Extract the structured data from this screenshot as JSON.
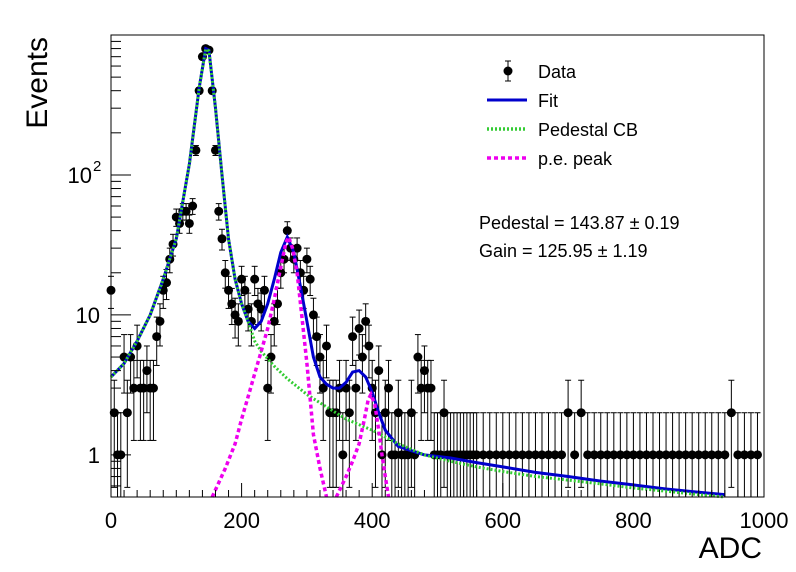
{
  "chart_data": {
    "type": "scatter",
    "xlabel": "ADC",
    "ylabel": "Events",
    "xlim": [
      0,
      1000
    ],
    "ylim": [
      0.5,
      1000
    ],
    "yscale": "log",
    "x_ticks": [
      "0",
      "200",
      "400",
      "600",
      "800",
      "1000"
    ],
    "y_ticks": [
      {
        "value": 1,
        "label": "1"
      },
      {
        "value": 10,
        "label": "10"
      },
      {
        "value": 100,
        "label": "10",
        "exp": "2"
      }
    ],
    "legend": {
      "placement": "top-right",
      "entries": [
        {
          "label": "Data",
          "style": "marker",
          "color": "#000000"
        },
        {
          "label": "Fit",
          "style": "solid",
          "color": "#0000cc"
        },
        {
          "label": "Pedestal CB",
          "style": "dotted",
          "color": "#33cc33"
        },
        {
          "label": "p.e. peak",
          "style": "dashed",
          "color": "#ee00ee"
        }
      ]
    },
    "annotations": [
      {
        "text": "Pedestal = 143.87 ± 0.19"
      },
      {
        "text": "Gain = 125.95 ± 1.19"
      }
    ],
    "series": [
      {
        "name": "Data",
        "color": "#000000",
        "points": [
          [
            0,
            15
          ],
          [
            5,
            2
          ],
          [
            10,
            1
          ],
          [
            15,
            1
          ],
          [
            20,
            5
          ],
          [
            25,
            2
          ],
          [
            30,
            5
          ],
          [
            35,
            3
          ],
          [
            40,
            6
          ],
          [
            45,
            3
          ],
          [
            50,
            3
          ],
          [
            55,
            4
          ],
          [
            60,
            3
          ],
          [
            65,
            3
          ],
          [
            70,
            7
          ],
          [
            75,
            9
          ],
          [
            80,
            15
          ],
          [
            85,
            17
          ],
          [
            90,
            25
          ],
          [
            95,
            32
          ],
          [
            100,
            50
          ],
          [
            105,
            45
          ],
          [
            110,
            55
          ],
          [
            115,
            55
          ],
          [
            120,
            45
          ],
          [
            125,
            60
          ],
          [
            130,
            150
          ],
          [
            135,
            400
          ],
          [
            140,
            700
          ],
          [
            145,
            800
          ],
          [
            150,
            780
          ],
          [
            155,
            400
          ],
          [
            160,
            150
          ],
          [
            165,
            55
          ],
          [
            170,
            35
          ],
          [
            175,
            20
          ],
          [
            180,
            15
          ],
          [
            185,
            12
          ],
          [
            190,
            10
          ],
          [
            195,
            9
          ],
          [
            200,
            18
          ],
          [
            205,
            15
          ],
          [
            210,
            11
          ],
          [
            215,
            9
          ],
          [
            220,
            18
          ],
          [
            225,
            12
          ],
          [
            230,
            11
          ],
          [
            235,
            15
          ],
          [
            240,
            3
          ],
          [
            245,
            5
          ],
          [
            250,
            9
          ],
          [
            255,
            12
          ],
          [
            260,
            20
          ],
          [
            265,
            25
          ],
          [
            270,
            40
          ],
          [
            275,
            30
          ],
          [
            280,
            25
          ],
          [
            285,
            30
          ],
          [
            290,
            20
          ],
          [
            295,
            15
          ],
          [
            300,
            25
          ],
          [
            305,
            18
          ],
          [
            310,
            10
          ],
          [
            315,
            7
          ],
          [
            320,
            5
          ],
          [
            325,
            3
          ],
          [
            330,
            6
          ],
          [
            335,
            2
          ],
          [
            340,
            2
          ],
          [
            345,
            2
          ],
          [
            350,
            3
          ],
          [
            355,
            1
          ],
          [
            360,
            3
          ],
          [
            365,
            2
          ],
          [
            370,
            7
          ],
          [
            375,
            3
          ],
          [
            380,
            8
          ],
          [
            385,
            5
          ],
          [
            390,
            9
          ],
          [
            395,
            6
          ],
          [
            400,
            3
          ],
          [
            405,
            2
          ],
          [
            410,
            4
          ],
          [
            415,
            1
          ],
          [
            420,
            2
          ],
          [
            425,
            3
          ],
          [
            430,
            1
          ],
          [
            435,
            1
          ],
          [
            440,
            2
          ],
          [
            445,
            1
          ],
          [
            450,
            1
          ],
          [
            455,
            1
          ],
          [
            460,
            2
          ],
          [
            465,
            1
          ],
          [
            470,
            5
          ],
          [
            475,
            3
          ],
          [
            480,
            4
          ],
          [
            485,
            3
          ],
          [
            490,
            3
          ],
          [
            495,
            1
          ],
          [
            500,
            1
          ],
          [
            505,
            1
          ],
          [
            510,
            2
          ],
          [
            515,
            1
          ],
          [
            520,
            1
          ],
          [
            525,
            1
          ],
          [
            530,
            1
          ],
          [
            535,
            1
          ],
          [
            540,
            1
          ],
          [
            545,
            1
          ],
          [
            550,
            1
          ],
          [
            555,
            1
          ],
          [
            560,
            1
          ],
          [
            570,
            1
          ],
          [
            580,
            1
          ],
          [
            590,
            1
          ],
          [
            600,
            1
          ],
          [
            610,
            1
          ],
          [
            620,
            1
          ],
          [
            630,
            1
          ],
          [
            640,
            1
          ],
          [
            650,
            1
          ],
          [
            660,
            1
          ],
          [
            670,
            1
          ],
          [
            680,
            1
          ],
          [
            690,
            1
          ],
          [
            700,
            2
          ],
          [
            710,
            1
          ],
          [
            720,
            2
          ],
          [
            730,
            1
          ],
          [
            740,
            1
          ],
          [
            750,
            1
          ],
          [
            760,
            1
          ],
          [
            770,
            1
          ],
          [
            780,
            1
          ],
          [
            790,
            1
          ],
          [
            800,
            1
          ],
          [
            810,
            1
          ],
          [
            820,
            1
          ],
          [
            830,
            1
          ],
          [
            840,
            1
          ],
          [
            850,
            1
          ],
          [
            860,
            1
          ],
          [
            870,
            1
          ],
          [
            880,
            1
          ],
          [
            890,
            1
          ],
          [
            900,
            1
          ],
          [
            910,
            1
          ],
          [
            920,
            1
          ],
          [
            930,
            1
          ],
          [
            940,
            1
          ],
          [
            950,
            2
          ],
          [
            960,
            1
          ],
          [
            970,
            1
          ],
          [
            980,
            1
          ],
          [
            990,
            1
          ]
        ]
      },
      {
        "name": "Fit",
        "color": "#0000cc",
        "points": [
          [
            0,
            3.6
          ],
          [
            20,
            4.5
          ],
          [
            40,
            6.5
          ],
          [
            60,
            10
          ],
          [
            80,
            18
          ],
          [
            100,
            35
          ],
          [
            120,
            120
          ],
          [
            135,
            420
          ],
          [
            145,
            800
          ],
          [
            150,
            780
          ],
          [
            160,
            300
          ],
          [
            170,
            100
          ],
          [
            180,
            35
          ],
          [
            190,
            18
          ],
          [
            200,
            12
          ],
          [
            210,
            9
          ],
          [
            220,
            8
          ],
          [
            230,
            9
          ],
          [
            240,
            12
          ],
          [
            250,
            18
          ],
          [
            260,
            28
          ],
          [
            270,
            36
          ],
          [
            280,
            28
          ],
          [
            290,
            16
          ],
          [
            300,
            9
          ],
          [
            310,
            5
          ],
          [
            320,
            3.6
          ],
          [
            330,
            3.2
          ],
          [
            340,
            3.0
          ],
          [
            350,
            3.0
          ],
          [
            360,
            3.3
          ],
          [
            370,
            3.9
          ],
          [
            380,
            4.0
          ],
          [
            390,
            3.6
          ],
          [
            400,
            2.8
          ],
          [
            410,
            2.0
          ],
          [
            420,
            1.5
          ],
          [
            440,
            1.15
          ],
          [
            480,
            1.0
          ],
          [
            520,
            0.95
          ],
          [
            560,
            0.88
          ],
          [
            600,
            0.82
          ],
          [
            650,
            0.75
          ],
          [
            700,
            0.7
          ],
          [
            750,
            0.65
          ],
          [
            800,
            0.61
          ],
          [
            850,
            0.57
          ],
          [
            900,
            0.54
          ],
          [
            940,
            0.52
          ]
        ]
      },
      {
        "name": "Pedestal CB",
        "color": "#33cc33",
        "points": [
          [
            0,
            3.6
          ],
          [
            20,
            4.5
          ],
          [
            40,
            6.5
          ],
          [
            60,
            10
          ],
          [
            80,
            18
          ],
          [
            100,
            35
          ],
          [
            120,
            120
          ],
          [
            135,
            420
          ],
          [
            145,
            790
          ],
          [
            150,
            770
          ],
          [
            160,
            300
          ],
          [
            170,
            100
          ],
          [
            180,
            35
          ],
          [
            190,
            18
          ],
          [
            200,
            12
          ],
          [
            210,
            9
          ],
          [
            220,
            6.5
          ],
          [
            230,
            5.5
          ],
          [
            250,
            4.3
          ],
          [
            270,
            3.5
          ],
          [
            300,
            2.7
          ],
          [
            330,
            2.2
          ],
          [
            360,
            1.8
          ],
          [
            400,
            1.5
          ],
          [
            440,
            1.2
          ],
          [
            480,
            1.0
          ],
          [
            520,
            0.9
          ],
          [
            560,
            0.82
          ],
          [
            600,
            0.76
          ],
          [
            650,
            0.7
          ],
          [
            700,
            0.66
          ],
          [
            750,
            0.62
          ],
          [
            800,
            0.58
          ],
          [
            850,
            0.55
          ],
          [
            900,
            0.52
          ],
          [
            940,
            0.5
          ]
        ]
      },
      {
        "name": "p.e. peak",
        "color": "#ee00ee",
        "segments": [
          [
            [
              155,
              0.5
            ],
            [
              175,
              0.8
            ],
            [
              190,
              1.2
            ],
            [
              200,
              1.8
            ],
            [
              210,
              2.6
            ],
            [
              220,
              3.8
            ],
            [
              230,
              5.5
            ],
            [
              240,
              8
            ],
            [
              250,
              13
            ],
            [
              260,
              22
            ],
            [
              268,
              33
            ],
            [
              272,
              36
            ],
            [
              278,
              30
            ],
            [
              285,
              20
            ],
            [
              292,
              10
            ],
            [
              300,
              4.5
            ],
            [
              305,
              2.5
            ],
            [
              310,
              1.4
            ],
            [
              320,
              0.8
            ],
            [
              330,
              0.5
            ]
          ],
          [
            [
              345,
              0.5
            ],
            [
              360,
              0.7
            ],
            [
              370,
              0.9
            ],
            [
              380,
              1.2
            ],
            [
              388,
              1.8
            ],
            [
              394,
              2.5
            ],
            [
              398,
              2.7
            ],
            [
              404,
              2.3
            ],
            [
              410,
              1.5
            ],
            [
              415,
              1.0
            ],
            [
              420,
              0.7
            ],
            [
              425,
              0.5
            ]
          ]
        ]
      }
    ]
  }
}
